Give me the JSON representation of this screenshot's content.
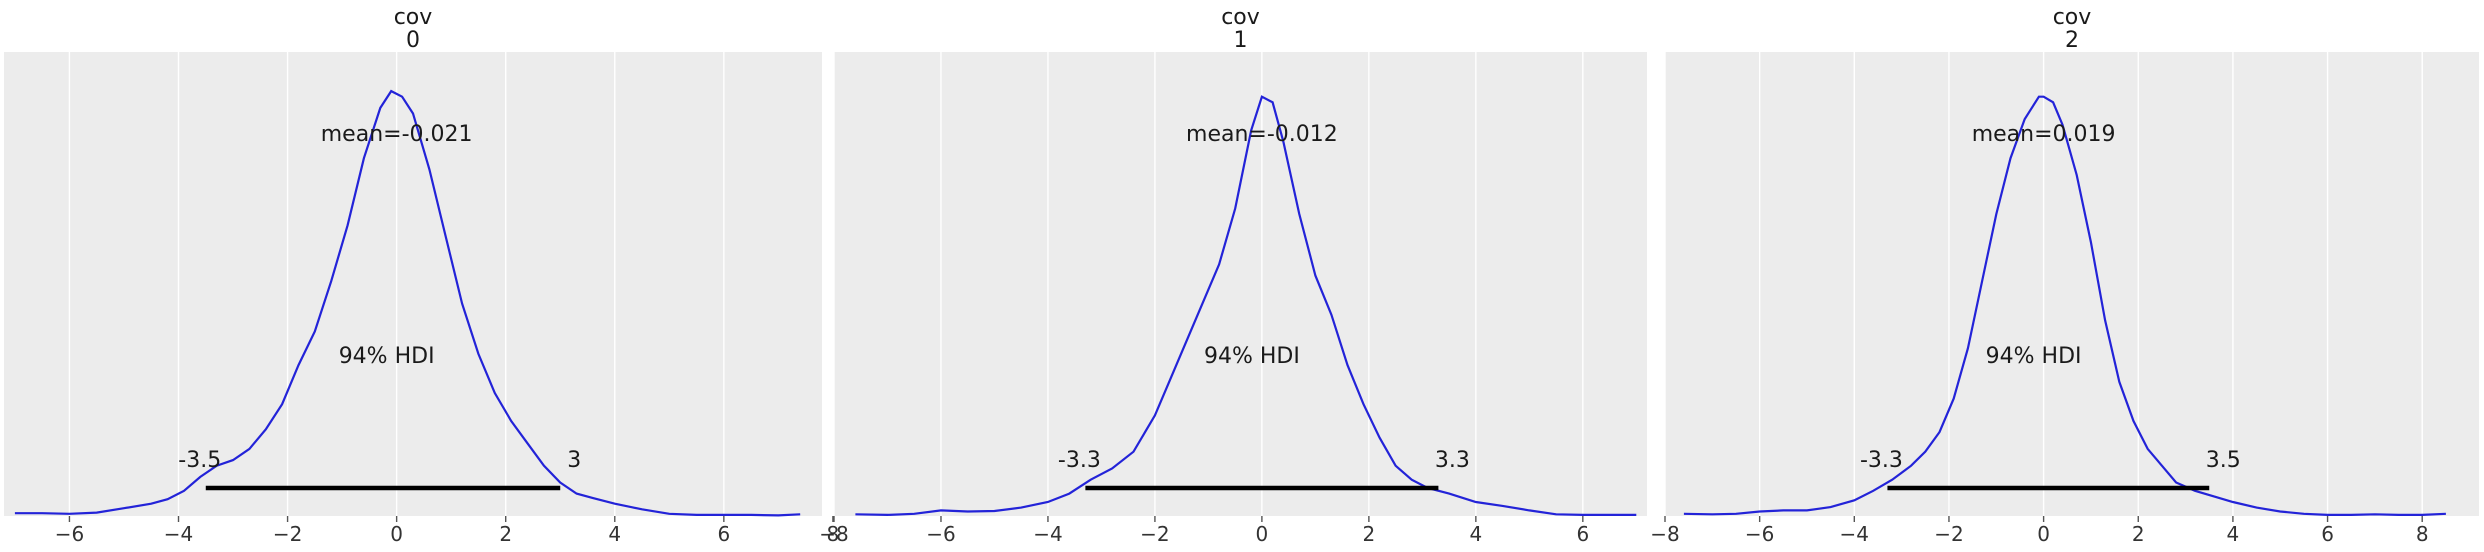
{
  "chart_data": [
    {
      "type": "line",
      "title_lines": [
        "cov",
        "0"
      ],
      "xlim": [
        -7.2,
        7.8
      ],
      "xticks": [
        -6,
        -4,
        -2,
        0,
        2,
        4,
        6,
        8
      ],
      "density": {
        "x": [
          -7.0,
          -6.5,
          -6.0,
          -5.5,
          -5.0,
          -4.5,
          -4.2,
          -3.9,
          -3.6,
          -3.3,
          -3.0,
          -2.7,
          -2.4,
          -2.1,
          -1.8,
          -1.5,
          -1.2,
          -0.9,
          -0.6,
          -0.3,
          -0.1,
          0.1,
          0.3,
          0.6,
          0.9,
          1.2,
          1.5,
          1.8,
          2.1,
          2.4,
          2.7,
          3.0,
          3.3,
          3.6,
          4.0,
          4.5,
          5.0,
          5.5,
          6.0,
          6.5,
          7.0,
          7.4
        ],
        "y": [
          0.005,
          0.005,
          0.004,
          0.006,
          0.014,
          0.022,
          0.03,
          0.045,
          0.07,
          0.09,
          0.1,
          0.12,
          0.155,
          0.2,
          0.27,
          0.33,
          0.42,
          0.52,
          0.64,
          0.73,
          0.76,
          0.75,
          0.72,
          0.62,
          0.5,
          0.38,
          0.29,
          0.22,
          0.17,
          0.13,
          0.09,
          0.06,
          0.04,
          0.032,
          0.022,
          0.012,
          0.004,
          0.002,
          0.002,
          0.002,
          0.001,
          0.003
        ],
        "ymax": 0.83
      },
      "mean_label": "mean=-0.021",
      "hdi_label": "94% HDI",
      "hdi": {
        "low": -3.5,
        "high": 3.0,
        "low_label": "-3.5",
        "high_label": "3"
      }
    },
    {
      "type": "line",
      "title_lines": [
        "cov",
        "1"
      ],
      "xlim": [
        -8.0,
        7.2
      ],
      "xticks": [
        -8,
        -6,
        -4,
        -2,
        0,
        2,
        4,
        6
      ],
      "density": {
        "x": [
          -7.6,
          -7.0,
          -6.5,
          -6.0,
          -5.5,
          -5.0,
          -4.5,
          -4.0,
          -3.6,
          -3.2,
          -2.8,
          -2.4,
          -2.0,
          -1.6,
          -1.2,
          -0.8,
          -0.5,
          -0.2,
          0.0,
          0.2,
          0.4,
          0.7,
          1.0,
          1.3,
          1.6,
          1.9,
          2.2,
          2.5,
          2.8,
          3.1,
          3.5,
          4.0,
          4.5,
          5.0,
          5.5,
          6.0,
          6.5,
          7.0
        ],
        "y": [
          0.003,
          0.002,
          0.004,
          0.01,
          0.008,
          0.009,
          0.015,
          0.025,
          0.04,
          0.065,
          0.085,
          0.115,
          0.18,
          0.27,
          0.36,
          0.45,
          0.55,
          0.69,
          0.75,
          0.74,
          0.67,
          0.54,
          0.43,
          0.36,
          0.27,
          0.2,
          0.14,
          0.09,
          0.065,
          0.05,
          0.04,
          0.025,
          0.018,
          0.01,
          0.003,
          0.002,
          0.002,
          0.002
        ],
        "ymax": 0.83
      },
      "mean_label": "mean=-0.012",
      "hdi_label": "94% HDI",
      "hdi": {
        "low": -3.3,
        "high": 3.3,
        "low_label": "-3.3",
        "high_label": "3.3"
      }
    },
    {
      "type": "line",
      "title_lines": [
        "cov",
        "2"
      ],
      "xlim": [
        -8.0,
        9.2
      ],
      "xticks": [
        -8,
        -6,
        -4,
        -2,
        0,
        2,
        4,
        6,
        8
      ],
      "density": {
        "x": [
          -7.6,
          -7.0,
          -6.5,
          -6.0,
          -5.5,
          -5.0,
          -4.5,
          -4.0,
          -3.6,
          -3.2,
          -2.8,
          -2.5,
          -2.2,
          -1.9,
          -1.6,
          -1.3,
          -1.0,
          -0.7,
          -0.4,
          -0.1,
          0.0,
          0.2,
          0.4,
          0.7,
          1.0,
          1.3,
          1.6,
          1.9,
          2.2,
          2.5,
          2.8,
          3.2,
          3.6,
          4.0,
          4.5,
          5.0,
          5.5,
          6.0,
          6.5,
          7.0,
          7.5,
          8.0,
          8.5
        ],
        "y": [
          0.004,
          0.003,
          0.004,
          0.008,
          0.01,
          0.01,
          0.016,
          0.028,
          0.045,
          0.065,
          0.09,
          0.115,
          0.15,
          0.21,
          0.3,
          0.42,
          0.54,
          0.64,
          0.71,
          0.75,
          0.75,
          0.74,
          0.7,
          0.61,
          0.49,
          0.35,
          0.24,
          0.17,
          0.12,
          0.09,
          0.06,
          0.045,
          0.035,
          0.025,
          0.015,
          0.008,
          0.004,
          0.002,
          0.002,
          0.003,
          0.002,
          0.002,
          0.004
        ],
        "ymax": 0.83
      },
      "mean_label": "mean=0.019",
      "hdi_label": "94% HDI",
      "hdi": {
        "low": -3.3,
        "high": 3.5,
        "low_label": "-3.3",
        "high_label": "3.5"
      }
    }
  ]
}
